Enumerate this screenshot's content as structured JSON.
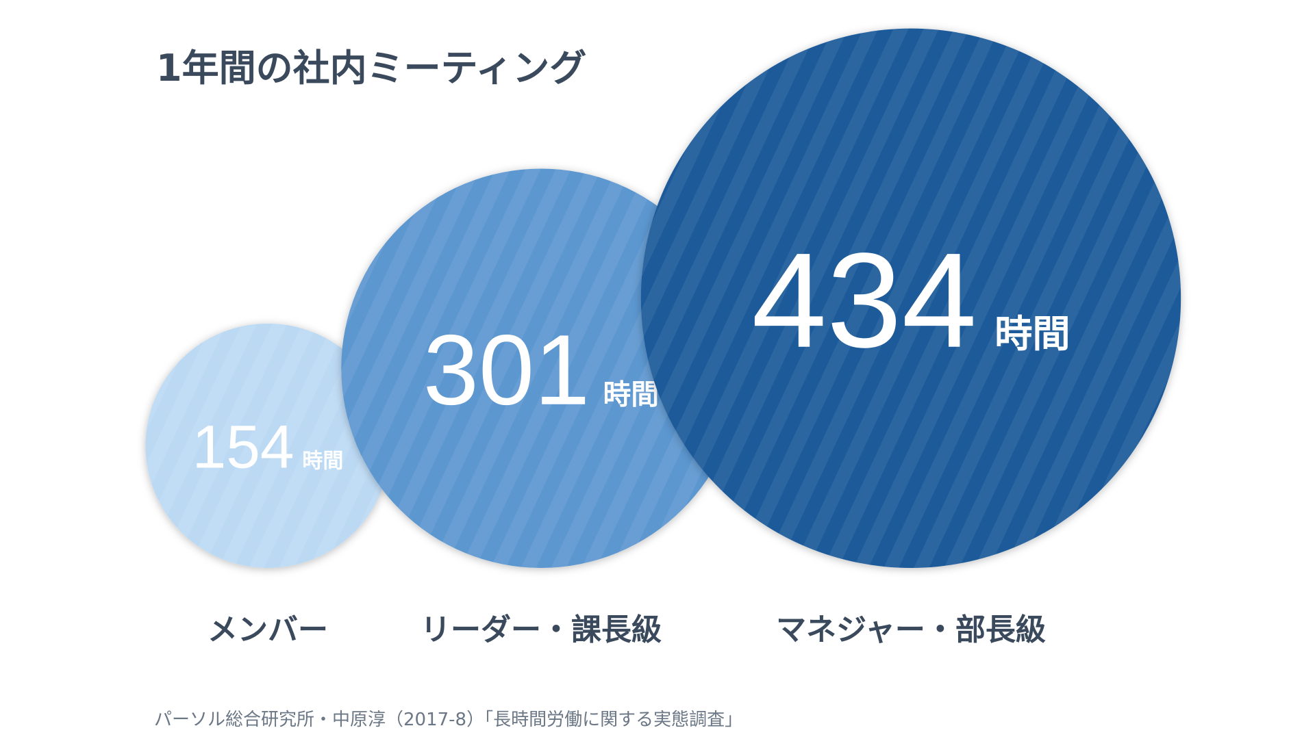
{
  "chart_data": {
    "type": "bubble",
    "title": "1年間の社内ミーティング",
    "categories": [
      "メンバー",
      "リーダー・課長級",
      "マネジャー・部長級"
    ],
    "values": [
      154,
      301,
      434
    ],
    "unit": "時間",
    "colors": [
      "#bcd9f4",
      "#5b97d0",
      "#1d5a9a"
    ],
    "source": "パーソル総合研究所・中原淳（2017-8）「長時間労働に関する実態調査」"
  }
}
